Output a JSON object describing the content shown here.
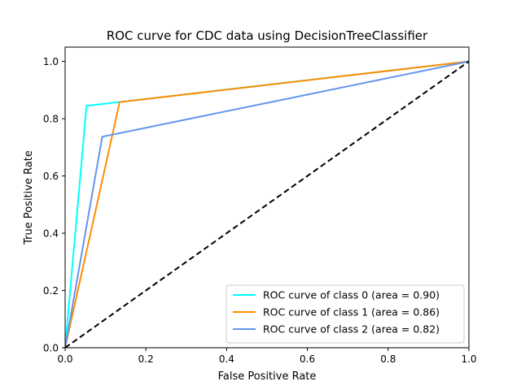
{
  "chart_data": {
    "type": "line",
    "title": "ROC curve for CDC data using DecisionTreeClassifier",
    "xlabel": "False Positive Rate",
    "ylabel": "True Positive Rate",
    "xlim": [
      0.0,
      1.0
    ],
    "ylim": [
      0.0,
      1.05
    ],
    "xticks": [
      "0.0",
      "0.2",
      "0.4",
      "0.6",
      "0.8",
      "1.0"
    ],
    "yticks": [
      "0.0",
      "0.2",
      "0.4",
      "0.6",
      "0.8",
      "1.0"
    ],
    "grid": false,
    "legend_position": "lower-right",
    "series": [
      {
        "name": "ROC curve of class 0 (area = 0.90)",
        "color": "#00ffff",
        "x": [
          0.0,
          0.053,
          1.0
        ],
        "y": [
          0.0,
          0.845,
          1.0
        ]
      },
      {
        "name": "ROC curve of class 1 (area = 0.86)",
        "color": "#ff8c00",
        "x": [
          0.0,
          0.135,
          1.0
        ],
        "y": [
          0.0,
          0.858,
          1.0
        ]
      },
      {
        "name": "ROC curve of class 2 (area = 0.82)",
        "color": "#6495ed",
        "x": [
          0.0,
          0.092,
          1.0
        ],
        "y": [
          0.0,
          0.737,
          1.0
        ]
      }
    ],
    "reference_line": {
      "color": "#000000",
      "style": "dashed",
      "x": [
        0.0,
        1.0
      ],
      "y": [
        0.0,
        1.0
      ]
    }
  }
}
